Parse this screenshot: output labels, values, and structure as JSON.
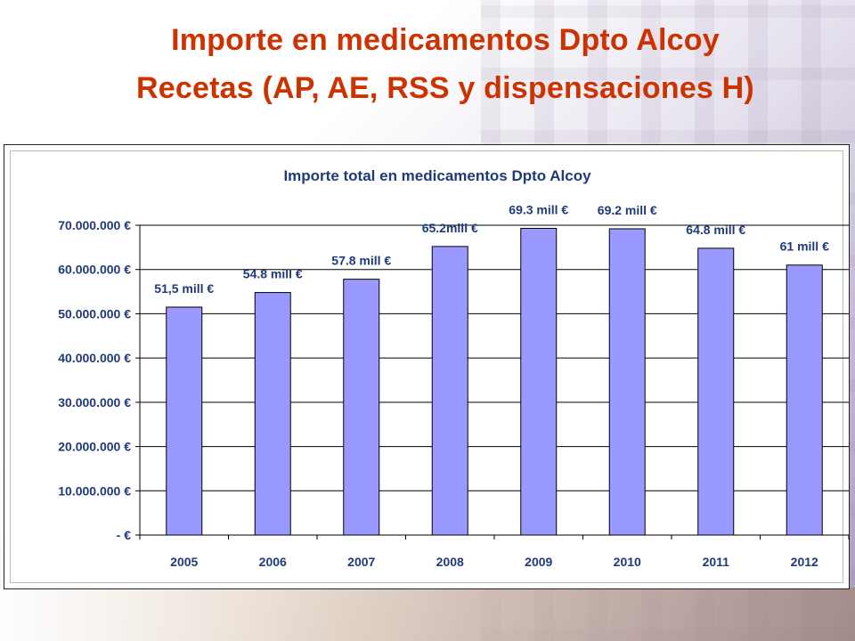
{
  "slide": {
    "title_line1": "Importe en medicamentos Dpto Alcoy",
    "title_line2": "Recetas (AP, AE, RSS y dispensaciones H)"
  },
  "colors": {
    "title": "#cc3300",
    "chart_text": "#1f3a7a",
    "bar_fill": "#9999ff",
    "bar_stroke": "#000000"
  },
  "chart_data": {
    "type": "bar",
    "title": "Importe total en medicamentos Dpto Alcoy",
    "xlabel": "",
    "ylabel": "",
    "categories": [
      "2005",
      "2006",
      "2007",
      "2008",
      "2009",
      "2010",
      "2011",
      "2012"
    ],
    "values": [
      51500000,
      54800000,
      57800000,
      65200000,
      69300000,
      69200000,
      64800000,
      61000000
    ],
    "data_labels": [
      "51,5 mill €",
      "54.8 mill €",
      "57.8 mill €",
      "65.2mill €",
      "69.3 mill €",
      "69.2 mill €",
      "64.8 mill €",
      "61 mill €"
    ],
    "ylim": [
      0,
      70000000
    ],
    "yticks": [
      0,
      10000000,
      20000000,
      30000000,
      40000000,
      50000000,
      60000000,
      70000000
    ],
    "ytick_labels": [
      "- €",
      "10.000.000 €",
      "20.000.000 €",
      "30.000.000 €",
      "40.000.000 €",
      "50.000.000 €",
      "60.000.000 €",
      "70.000.000 €"
    ],
    "grid": true,
    "legend": "none"
  }
}
